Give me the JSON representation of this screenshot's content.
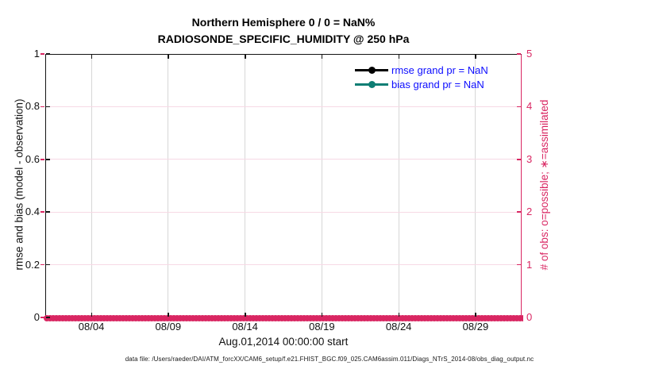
{
  "figure": {
    "title_line1": "Northern Hemisphere 0 / 0 = NaN%",
    "title_line2": "RADIOSONDE_SPECIFIC_HUMIDITY @ 250 hPa",
    "footer_text": "data file: /Users/raeder/DAI/ATM_forcXX/CAM6_setup/f.e21.FHIST_BGC.f09_025.CAM6assim.011/Diags_NTrS_2014-08/obs_diag_output.nc"
  },
  "colors": {
    "obs_pink": "#d92662",
    "grid_pink": "#f7d9e5",
    "grid_gray": "#d7d7d7",
    "rmse_black": "#000000",
    "bias_teal": "#0e7e74",
    "legend_text_blue": "#0d0dff",
    "axis_black": "#141414"
  },
  "legend": {
    "entries": [
      {
        "label": "rmse grand pr = NaN",
        "color": "#000000"
      },
      {
        "label": "bias grand pr = NaN",
        "color": "#0e7e74"
      }
    ]
  },
  "chart_data": {
    "type": "line",
    "title": "Northern Hemisphere 0 / 0 = NaN%",
    "subtitle": "RADIOSONDE_SPECIFIC_HUMIDITY @ 250 hPa",
    "grid": true,
    "legend_position": "top-right-inside",
    "x_axis": {
      "label": "Aug.01,2014 00:00:00 start",
      "range_start": "08/01 00:00",
      "range_end": "09/01 00:00",
      "span_days": 31,
      "tick_labels": [
        "08/04",
        "08/09",
        "08/14",
        "08/19",
        "08/24",
        "08/29"
      ],
      "tick_day_offsets": [
        3,
        8,
        13,
        18,
        23,
        28
      ]
    },
    "left_axis": {
      "label": "rmse and bias (model - observation)",
      "ticks": [
        "0",
        "0.2",
        "0.4",
        "0.6",
        "0.8",
        "1"
      ],
      "range": [
        0,
        1
      ],
      "color": "#000000"
    },
    "right_axis": {
      "label": "# of obs: o=possible; ∗=assimilated",
      "ticks": [
        "0",
        "1",
        "2",
        "3",
        "4",
        "5"
      ],
      "range": [
        0,
        5
      ],
      "color": "#d92662"
    },
    "series": [
      {
        "name": "rmse grand pr = NaN",
        "style": "line+dot",
        "color": "#000000",
        "values": []
      },
      {
        "name": "bias grand pr = NaN",
        "style": "line+dot",
        "color": "#0e7e74",
        "values": []
      },
      {
        "name": "# of obs possible (o)",
        "style": "marker",
        "marker": "o",
        "color": "#d92662",
        "constant_value": 0
      },
      {
        "name": "# of obs assimilated (∗)",
        "style": "marker",
        "marker": "∗",
        "color": "#d92662",
        "constant_value": 0
      }
    ]
  }
}
